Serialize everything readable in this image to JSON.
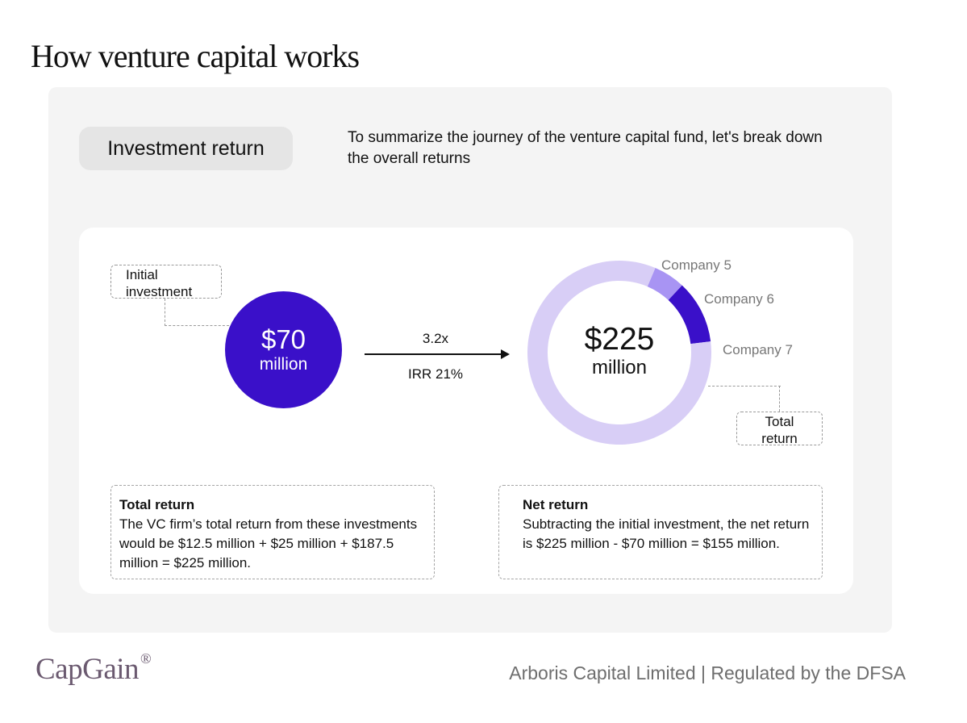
{
  "title": "How venture capital works",
  "section_label": "Investment return",
  "intro": "To summarize the journey of the venture capital fund, let's break down the overall returns",
  "initial_investment": {
    "label_line1": "Initial",
    "label_line2": "investment",
    "amount": "$70",
    "unit": "million",
    "color": "#3a10c9"
  },
  "growth": {
    "multiple": "3.2x",
    "irr": "IRR 21%"
  },
  "total": {
    "amount": "$225",
    "unit": "million",
    "label_line1": "Total",
    "label_line2": "return"
  },
  "chart_data": {
    "type": "pie",
    "variant": "donut",
    "slices": [
      {
        "name": "Company 5",
        "value": 12.5,
        "color": "#a894f3"
      },
      {
        "name": "Company 6",
        "value": 25,
        "color": "#3a10c9"
      },
      {
        "name": "Company 7",
        "value": 187.5,
        "color": "#d8cef6"
      }
    ],
    "total": 225
  },
  "notes": {
    "total_return": {
      "title": "Total return",
      "body": "The VC firm’s total return from these investments would be $12.5 million + $25 million + $187.5 million = $225 million."
    },
    "net_return": {
      "title": "Net return",
      "body": "Subtracting the initial investment, the net return is $225 million - $70 million = $155 million."
    }
  },
  "footer": {
    "brand": "CapGain",
    "brand_mark": "®",
    "legal": "Arboris Capital Limited | Regulated by the DFSA"
  }
}
